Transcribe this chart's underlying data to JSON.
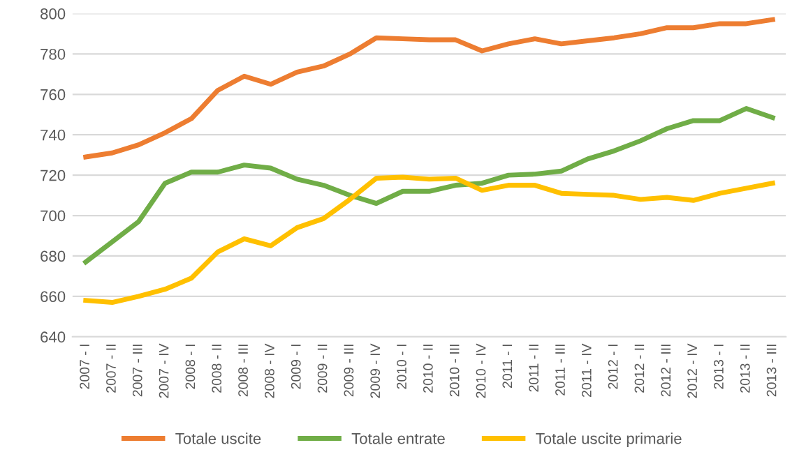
{
  "chart_data": {
    "type": "line",
    "categories": [
      "2007 - I",
      "2007 - II",
      "2007 - III",
      "2007 - IV",
      "2008 - I",
      "2008 - II",
      "2008 - III",
      "2008 - IV",
      "2009 - I",
      "2009 - II",
      "2009 - III",
      "2009 - IV",
      "2010 - I",
      "2010 - II",
      "2010 - III",
      "2010 - IV",
      "2011 - I",
      "2011 - II",
      "2011 - III",
      "2011 - IV",
      "2012 - I",
      "2012 - II",
      "2012 - III",
      "2012 - IV",
      "2013 - I",
      "2013 - II",
      "2013 - III"
    ],
    "series": [
      {
        "name": "Totale uscite",
        "color": "#ed7d31",
        "values": [
          729,
          731,
          735,
          741,
          748,
          762,
          769,
          765,
          771,
          774,
          780,
          788,
          787.5,
          787,
          787,
          781.5,
          785,
          787.5,
          785,
          786.5,
          788,
          790,
          793,
          793,
          795,
          795,
          797
        ]
      },
      {
        "name": "Totale entrate",
        "color": "#70ad47",
        "values": [
          677,
          687,
          697,
          716,
          721.5,
          721.5,
          725,
          723.5,
          718,
          715,
          710,
          706,
          712,
          712,
          715,
          716,
          720,
          720.5,
          722,
          728,
          732,
          737,
          743,
          747,
          747,
          753,
          748.5
        ]
      },
      {
        "name": "Totale uscite primarie",
        "color": "#ffc000",
        "values": [
          658,
          657,
          660,
          663.5,
          669,
          682,
          688.5,
          685,
          694,
          698.5,
          708,
          718.5,
          719,
          718,
          718.5,
          712.5,
          715,
          715,
          711,
          710.5,
          710,
          708,
          709,
          707.5,
          711,
          713.5,
          716
        ]
      }
    ],
    "ylim": [
      640,
      800
    ],
    "yticks": [
      640,
      660,
      680,
      700,
      720,
      740,
      760,
      780,
      800
    ],
    "grid": "y",
    "legend": "bottom",
    "marker": "none",
    "line_style": "solid"
  }
}
